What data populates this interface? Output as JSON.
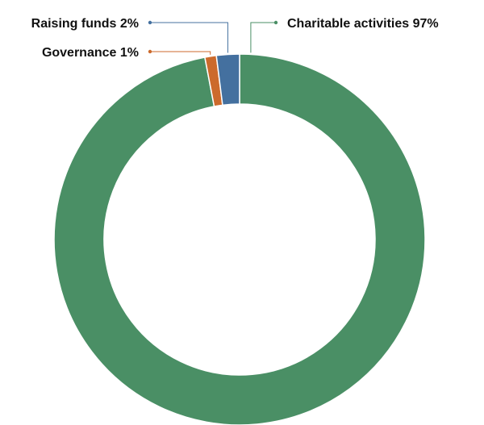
{
  "chart_data": {
    "type": "pie",
    "donut": true,
    "slices": [
      {
        "name": "Charitable activities",
        "value": 97,
        "label": "Charitable activities 97%",
        "color": "#4a8f65"
      },
      {
        "name": "Raising funds",
        "value": 2,
        "label": "Raising funds 2%",
        "color": "#44709f"
      },
      {
        "name": "Governance",
        "value": 1,
        "label": "Governance 1%",
        "color": "#cc6a2c"
      }
    ],
    "legend": "none",
    "slice_order": "clockwise from top"
  }
}
